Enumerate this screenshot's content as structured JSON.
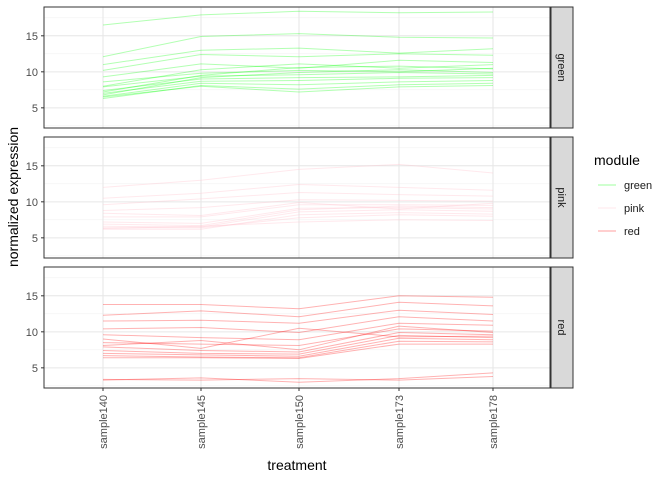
{
  "chart_data": {
    "type": "line",
    "xlabel": "treatment",
    "ylabel": "normalized expression",
    "categories": [
      "sample140",
      "sample145",
      "sample150",
      "sample173",
      "sample178"
    ],
    "ylim": [
      2.2,
      19
    ],
    "yticks": [
      5,
      10,
      15
    ],
    "grid": true,
    "legend": {
      "title": "module",
      "position": "right",
      "entries": [
        {
          "label": "green",
          "color": "#00FF00"
        },
        {
          "label": "pink",
          "color": "#FFC0CB"
        },
        {
          "label": "red",
          "color": "#FF0000"
        }
      ]
    },
    "facets": [
      {
        "label": "green",
        "color": "#00FF00",
        "series": [
          {
            "values": [
              16.5,
              17.9,
              18.4,
              18.2,
              18.3
            ]
          },
          {
            "values": [
              12.1,
              14.9,
              15.3,
              14.8,
              14.7
            ]
          },
          {
            "values": [
              11.0,
              13.0,
              13.3,
              12.6,
              13.2
            ]
          },
          {
            "values": [
              10.2,
              12.4,
              12.1,
              12.5,
              12.3
            ]
          },
          {
            "values": [
              9.3,
              11.1,
              10.5,
              11.6,
              11.3
            ]
          },
          {
            "values": [
              8.6,
              9.8,
              10.2,
              10.0,
              10.5
            ]
          },
          {
            "values": [
              7.9,
              9.4,
              9.6,
              9.9,
              9.7
            ]
          },
          {
            "values": [
              7.4,
              9.0,
              9.2,
              9.3,
              9.5
            ]
          },
          {
            "values": [
              7.0,
              8.7,
              8.8,
              9.1,
              9.2
            ]
          },
          {
            "values": [
              6.6,
              8.4,
              8.2,
              8.6,
              8.8
            ]
          },
          {
            "values": [
              6.3,
              8.1,
              7.6,
              8.2,
              8.4
            ]
          },
          {
            "values": [
              6.8,
              9.2,
              9.9,
              10.3,
              9.9
            ]
          },
          {
            "values": [
              7.2,
              9.5,
              10.6,
              10.8,
              10.4
            ]
          },
          {
            "values": [
              8.0,
              10.3,
              11.1,
              10.5,
              11.0
            ]
          },
          {
            "values": [
              6.5,
              8.0,
              7.2,
              7.9,
              8.1
            ]
          }
        ]
      },
      {
        "label": "pink",
        "color": "#FFC0CB",
        "series": [
          {
            "values": [
              12.0,
              13.0,
              14.5,
              15.2,
              14.0
            ]
          },
          {
            "values": [
              10.5,
              11.2,
              12.4,
              12.0,
              11.6
            ]
          },
          {
            "values": [
              9.6,
              10.4,
              11.3,
              11.0,
              10.8
            ]
          },
          {
            "values": [
              8.8,
              9.2,
              10.3,
              10.2,
              10.1
            ]
          },
          {
            "values": [
              7.9,
              7.9,
              9.6,
              9.6,
              9.5
            ]
          },
          {
            "values": [
              7.2,
              7.0,
              9.1,
              9.2,
              9.0
            ]
          },
          {
            "values": [
              6.6,
              6.5,
              8.6,
              8.9,
              8.7
            ]
          },
          {
            "values": [
              6.2,
              6.2,
              8.2,
              8.5,
              8.3
            ]
          },
          {
            "values": [
              6.4,
              6.4,
              7.8,
              8.2,
              8.0
            ]
          },
          {
            "values": [
              6.9,
              6.7,
              8.9,
              9.4,
              9.2
            ]
          },
          {
            "values": [
              8.4,
              8.1,
              9.9,
              9.0,
              9.8
            ]
          },
          {
            "values": [
              6.3,
              6.6,
              7.2,
              7.5,
              7.4
            ]
          }
        ]
      },
      {
        "label": "red",
        "color": "#FF0000",
        "series": [
          {
            "values": [
              13.8,
              13.8,
              13.2,
              15.0,
              14.8
            ]
          },
          {
            "values": [
              12.3,
              12.9,
              12.1,
              14.1,
              13.6
            ]
          },
          {
            "values": [
              11.5,
              11.6,
              11.2,
              13.0,
              12.4
            ]
          },
          {
            "values": [
              10.4,
              10.6,
              9.9,
              12.1,
              11.5
            ]
          },
          {
            "values": [
              9.6,
              9.2,
              8.9,
              11.2,
              10.9
            ]
          },
          {
            "values": [
              8.5,
              8.3,
              8.1,
              10.4,
              10.1
            ]
          },
          {
            "values": [
              7.9,
              7.4,
              7.2,
              9.9,
              9.6
            ]
          },
          {
            "values": [
              7.4,
              7.0,
              6.9,
              9.5,
              9.2
            ]
          },
          {
            "values": [
              7.0,
              6.8,
              6.6,
              9.1,
              8.9
            ]
          },
          {
            "values": [
              6.7,
              6.5,
              6.4,
              8.7,
              8.6
            ]
          },
          {
            "values": [
              6.4,
              6.4,
              6.3,
              8.3,
              8.3
            ]
          },
          {
            "values": [
              8.1,
              8.8,
              7.5,
              10.8,
              9.9
            ]
          },
          {
            "values": [
              9.0,
              7.7,
              10.5,
              9.3,
              9.4
            ]
          },
          {
            "values": [
              3.3,
              3.6,
              3.0,
              3.5,
              4.3
            ]
          },
          {
            "values": [
              3.4,
              3.3,
              3.5,
              3.3,
              3.8
            ]
          }
        ]
      }
    ]
  }
}
